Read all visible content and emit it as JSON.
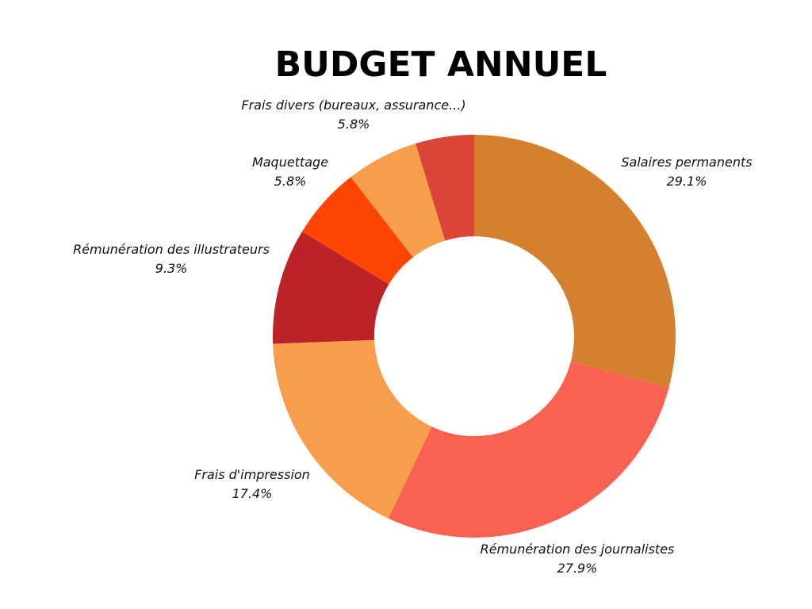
{
  "chart_data": {
    "type": "pie",
    "title": "BUDGET ANNUEL",
    "donut": true,
    "categories": [
      "Salaires permanents",
      "Rémunération des journalistes",
      "Frais d'impression",
      "Rémunération des illustrateurs",
      "Maquettage",
      "Frais divers (bureaux, assurance...)"
    ],
    "values": [
      29.1,
      27.9,
      17.4,
      9.3,
      5.8,
      5.8
    ],
    "value_labels": [
      "29.1%",
      "27.9%",
      "17.4%",
      "9.3%",
      "5.8%",
      "5.8%"
    ],
    "extra_slice": {
      "label": "",
      "value": 4.7
    },
    "colors": [
      "#D5802E",
      "#F96152",
      "#F79D4B",
      "#BB2326",
      "#FF4504",
      "#F79D4B",
      "#DA4439"
    ],
    "start": "top",
    "direction": "clockwise"
  }
}
